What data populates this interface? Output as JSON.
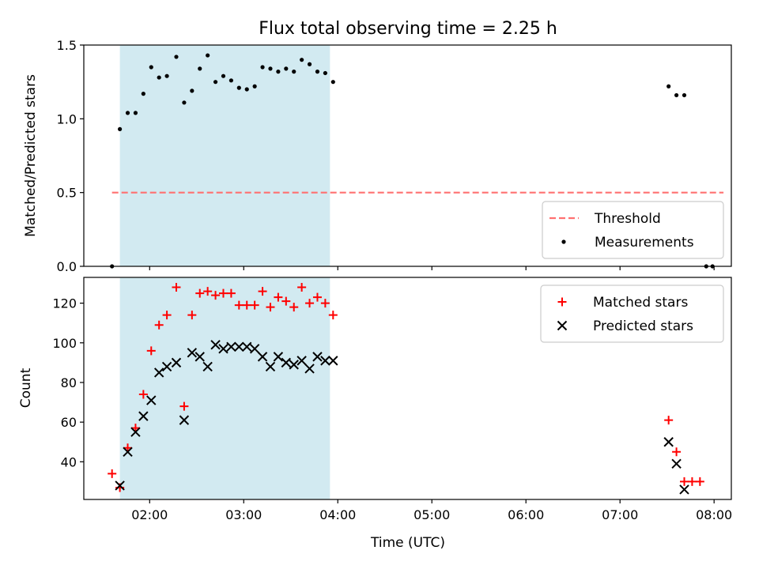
{
  "figure": {
    "title": "Flux total observing time = 2.25 h",
    "xlabel": "Time (UTC)",
    "xticks": [
      "02:00",
      "03:00",
      "04:00",
      "05:00",
      "06:00",
      "07:00",
      "08:00"
    ],
    "colors": {
      "shade": "#add8e6",
      "threshold": "#ff7070",
      "measurements": "#000000",
      "matched": "#ff0000",
      "predicted": "#000000"
    }
  },
  "chart_data": [
    {
      "type": "scatter",
      "ylabel": "Matched/Predicted stars",
      "ylim": [
        0,
        1.5
      ],
      "xlim": [
        "01:18",
        "08:11"
      ],
      "yticks": [
        "0.0",
        "0.5",
        "1.0",
        "1.5"
      ],
      "shaded_region": [
        "01:41",
        "03:55"
      ],
      "threshold": {
        "name": "Threshold",
        "y": 0.5,
        "x_range": [
          "01:36",
          "08:06"
        ]
      },
      "legend_position": "lower right",
      "series": [
        {
          "name": "Measurements",
          "marker": "dot",
          "points": [
            [
              "01:36",
              0.0
            ],
            [
              "01:41",
              0.93
            ],
            [
              "01:46",
              1.04
            ],
            [
              "01:51",
              1.04
            ],
            [
              "01:56",
              1.17
            ],
            [
              "02:01",
              1.35
            ],
            [
              "02:06",
              1.28
            ],
            [
              "02:11",
              1.29
            ],
            [
              "02:17",
              1.42
            ],
            [
              "02:22",
              1.11
            ],
            [
              "02:27",
              1.19
            ],
            [
              "02:32",
              1.34
            ],
            [
              "02:37",
              1.43
            ],
            [
              "02:42",
              1.25
            ],
            [
              "02:47",
              1.29
            ],
            [
              "02:52",
              1.26
            ],
            [
              "02:57",
              1.21
            ],
            [
              "03:02",
              1.2
            ],
            [
              "03:07",
              1.22
            ],
            [
              "03:12",
              1.35
            ],
            [
              "03:17",
              1.34
            ],
            [
              "03:22",
              1.32
            ],
            [
              "03:27",
              1.34
            ],
            [
              "03:32",
              1.32
            ],
            [
              "03:37",
              1.4
            ],
            [
              "03:42",
              1.37
            ],
            [
              "03:47",
              1.32
            ],
            [
              "03:52",
              1.31
            ],
            [
              "03:57",
              1.25
            ],
            [
              "07:31",
              1.22
            ],
            [
              "07:36",
              1.16
            ],
            [
              "07:41",
              1.16
            ],
            [
              "07:55",
              0.0
            ],
            [
              "07:59",
              0.0
            ]
          ]
        }
      ]
    },
    {
      "type": "scatter",
      "ylabel": "Count",
      "ylim": [
        21,
        133
      ],
      "xlim": [
        "01:18",
        "08:11"
      ],
      "yticks": [
        "40",
        "60",
        "80",
        "100",
        "120"
      ],
      "shaded_region": [
        "01:41",
        "03:55"
      ],
      "legend_position": "upper right",
      "series": [
        {
          "name": "Matched stars",
          "marker": "plus",
          "points": [
            [
              "01:36",
              34
            ],
            [
              "01:41",
              27
            ],
            [
              "01:46",
              47
            ],
            [
              "01:51",
              57
            ],
            [
              "01:56",
              74
            ],
            [
              "02:01",
              96
            ],
            [
              "02:06",
              109
            ],
            [
              "02:11",
              114
            ],
            [
              "02:17",
              128
            ],
            [
              "02:22",
              68
            ],
            [
              "02:27",
              114
            ],
            [
              "02:32",
              125
            ],
            [
              "02:37",
              126
            ],
            [
              "02:42",
              124
            ],
            [
              "02:47",
              125
            ],
            [
              "02:52",
              125
            ],
            [
              "02:57",
              119
            ],
            [
              "03:02",
              119
            ],
            [
              "03:07",
              119
            ],
            [
              "03:12",
              126
            ],
            [
              "03:17",
              118
            ],
            [
              "03:22",
              123
            ],
            [
              "03:27",
              121
            ],
            [
              "03:32",
              118
            ],
            [
              "03:37",
              128
            ],
            [
              "03:42",
              120
            ],
            [
              "03:47",
              123
            ],
            [
              "03:52",
              120
            ],
            [
              "03:57",
              114
            ],
            [
              "07:31",
              61
            ],
            [
              "07:36",
              45
            ],
            [
              "07:41",
              30
            ],
            [
              "07:46",
              30
            ],
            [
              "07:51",
              30
            ]
          ]
        },
        {
          "name": "Predicted stars",
          "marker": "x",
          "points": [
            [
              "01:41",
              28
            ],
            [
              "01:46",
              45
            ],
            [
              "01:51",
              55
            ],
            [
              "01:56",
              63
            ],
            [
              "02:01",
              71
            ],
            [
              "02:06",
              85
            ],
            [
              "02:11",
              88
            ],
            [
              "02:17",
              90
            ],
            [
              "02:22",
              61
            ],
            [
              "02:27",
              95
            ],
            [
              "02:32",
              93
            ],
            [
              "02:37",
              88
            ],
            [
              "02:42",
              99
            ],
            [
              "02:47",
              97
            ],
            [
              "02:52",
              98
            ],
            [
              "02:57",
              98
            ],
            [
              "03:02",
              98
            ],
            [
              "03:07",
              97
            ],
            [
              "03:12",
              93
            ],
            [
              "03:17",
              88
            ],
            [
              "03:22",
              93
            ],
            [
              "03:27",
              90
            ],
            [
              "03:32",
              89
            ],
            [
              "03:37",
              91
            ],
            [
              "03:42",
              87
            ],
            [
              "03:47",
              93
            ],
            [
              "03:52",
              91
            ],
            [
              "03:57",
              91
            ],
            [
              "07:31",
              50
            ],
            [
              "07:36",
              39
            ],
            [
              "07:41",
              26
            ]
          ]
        }
      ]
    }
  ]
}
